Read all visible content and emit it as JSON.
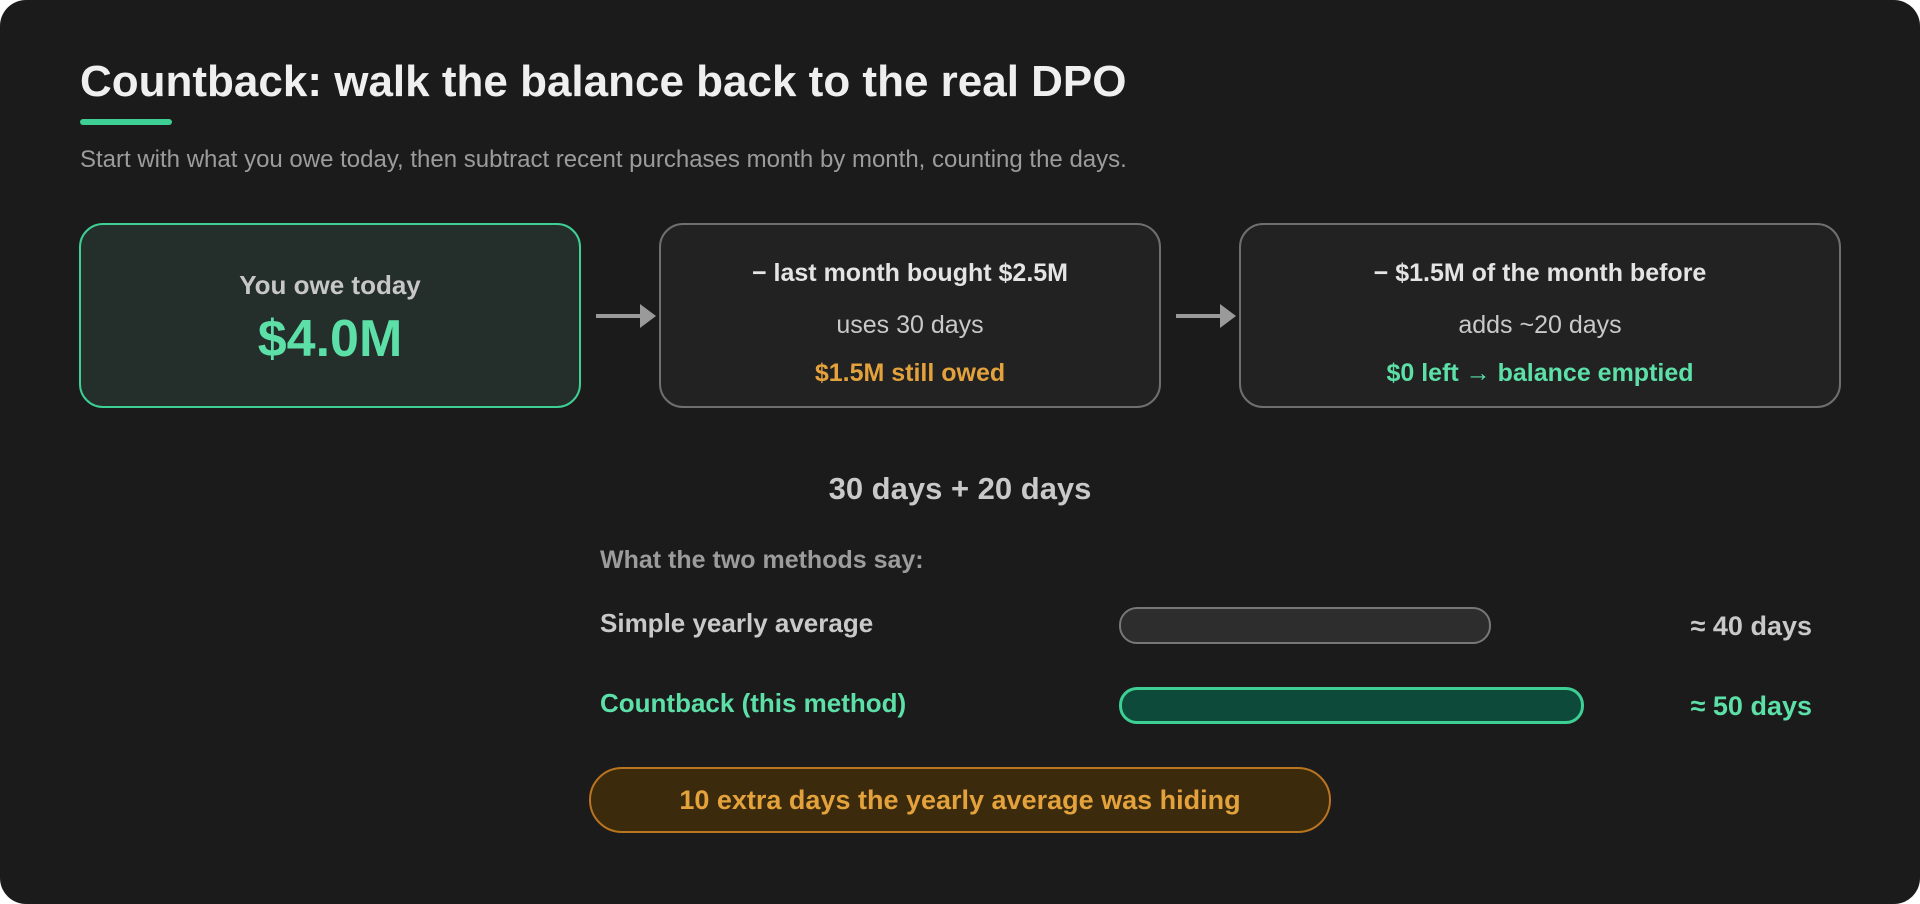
{
  "header": {
    "title": "Countback: walk the balance back to the real DPO",
    "subtitle": "Start with what you owe today, then subtract recent purchases month by month, counting the days."
  },
  "steps": [
    {
      "label": "You owe today",
      "amount": "$4.0M"
    },
    {
      "heading": "− last month bought $2.5M",
      "detail": "uses 30 days",
      "result": "$1.5M still owed"
    },
    {
      "heading": "− $1.5M of the month before",
      "detail": "adds ~20 days",
      "result": "$0 left → balance emptied"
    }
  ],
  "sum": "30 days + 20 days",
  "comparison": {
    "title": "What the two methods say:",
    "rows": [
      {
        "label": "Simple yearly average",
        "value": "≈ 40 days",
        "days": 40
      },
      {
        "label": "Countback (this method)",
        "value": "≈ 50 days",
        "days": 50
      }
    ]
  },
  "callout": "10 extra days the yearly average was hiding",
  "colors": {
    "background": "#1b1b1b",
    "accent_green": "#3ecf95",
    "accent_orange": "#e3a23c",
    "neutral": "#6f6f6f"
  }
}
